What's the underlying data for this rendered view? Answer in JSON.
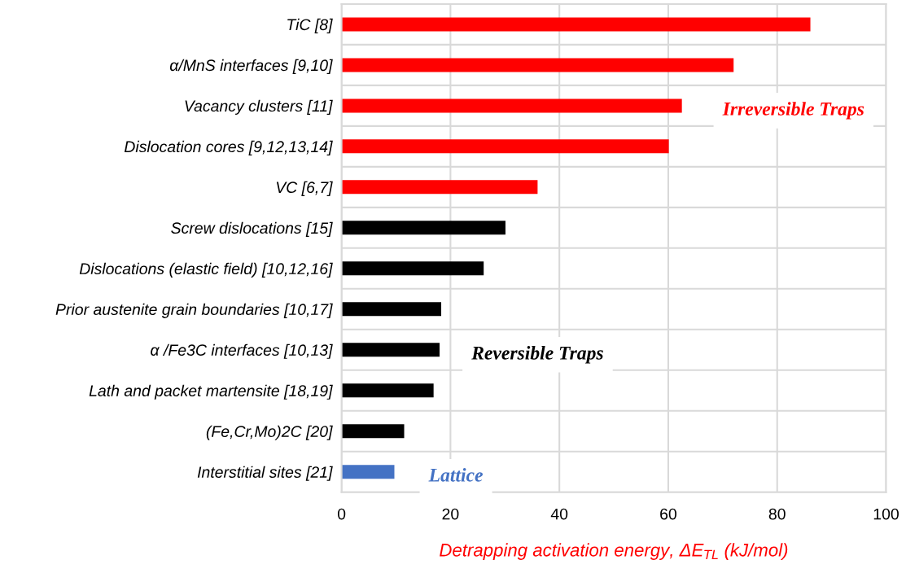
{
  "chart_data": {
    "type": "bar",
    "orientation": "horizontal",
    "categories": [
      "TiC [8]",
      "α/MnS interfaces [9,10]",
      "Vacancy clusters [11]",
      "Dislocation cores [9,12,13,14]",
      "VC [6,7]",
      "Screw dislocations [15]",
      "Dislocations (elastic field) [10,12,16]",
      "Prior austenite grain boundaries [10,17]",
      "α /Fe3C interfaces [10,13]",
      "Lath and packet martensite [18,19]",
      "(Fe,Cr,Mo)2C [20]",
      "Interstitial sites [21]"
    ],
    "values": [
      86.1,
      72.0,
      62.5,
      60.1,
      36.0,
      30.1,
      26.1,
      18.3,
      18.0,
      16.9,
      11.5,
      9.7
    ],
    "colors": [
      "#ff0000",
      "#ff0000",
      "#ff0000",
      "#ff0000",
      "#ff0000",
      "#000000",
      "#000000",
      "#000000",
      "#000000",
      "#000000",
      "#000000",
      "#4472c4"
    ],
    "xlabel": "Detrapping activation energy, ΔE$_{TL}$ (kJ/mol)",
    "xlim": [
      0,
      100
    ],
    "xticks": [
      0,
      20,
      40,
      60,
      80,
      100
    ],
    "grid": true,
    "annotations": [
      "Irreversible Traps",
      "Reversible Traps",
      "Lattice"
    ]
  }
}
